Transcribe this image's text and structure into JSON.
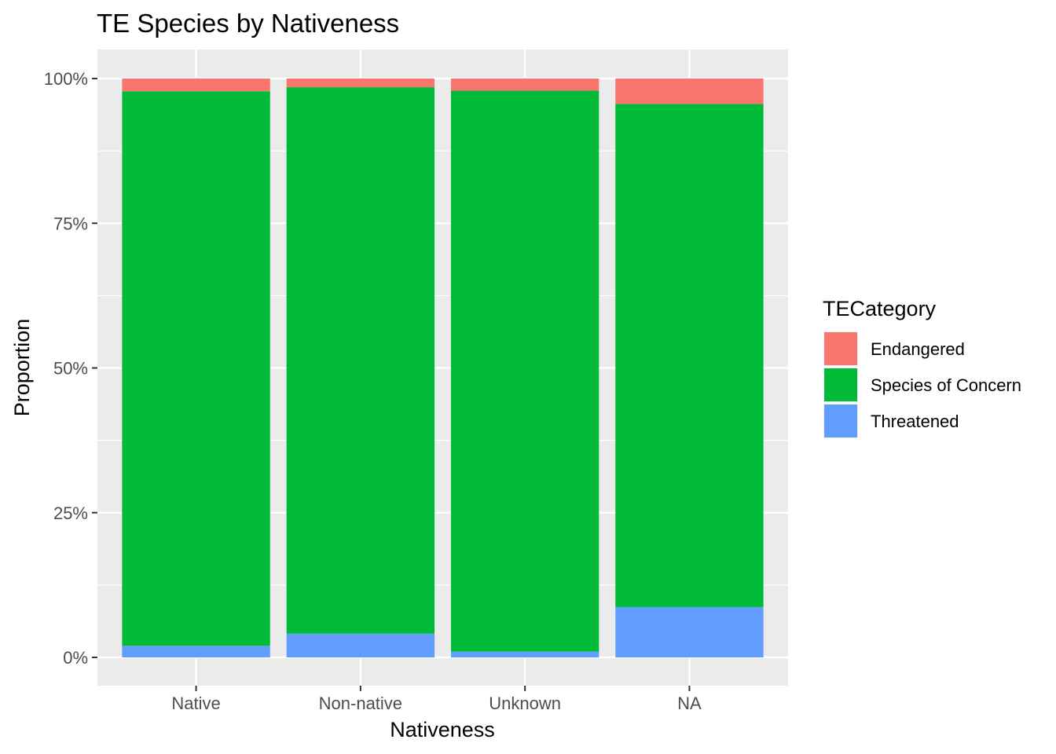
{
  "chart_data": {
    "type": "bar",
    "stacked": "fill",
    "title": "TE Species by Nativeness",
    "xlabel": "Nativeness",
    "ylabel": "Proportion",
    "categories": [
      "Native",
      "Non-native",
      "Unknown",
      "NA"
    ],
    "ylim": [
      0,
      1
    ],
    "yticks": [
      0,
      0.25,
      0.5,
      0.75,
      1.0
    ],
    "ytick_labels": [
      "0%",
      "25%",
      "50%",
      "75%",
      "100%"
    ],
    "grid": true,
    "legend": {
      "title": "TECategory",
      "placement": "right",
      "entries": [
        "Endangered",
        "Species of Concern",
        "Threatened"
      ]
    },
    "series": [
      {
        "name": "Threatened",
        "color": "#619CFF",
        "values": [
          0.02,
          0.041,
          0.01,
          0.087
        ]
      },
      {
        "name": "Species of Concern",
        "color": "#00BA38",
        "values": [
          0.958,
          0.944,
          0.969,
          0.869
        ]
      },
      {
        "name": "Endangered",
        "color": "#F8766D",
        "values": [
          0.022,
          0.015,
          0.021,
          0.044
        ]
      }
    ],
    "legend_colors": {
      "Endangered": "#F8766D",
      "Species of Concern": "#00BA38",
      "Threatened": "#619CFF"
    }
  }
}
